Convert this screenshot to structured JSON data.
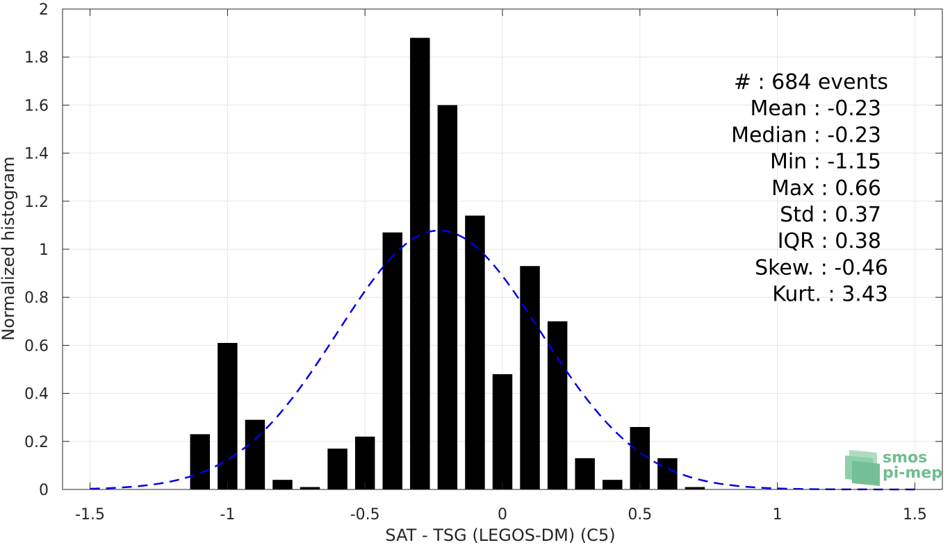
{
  "chart_data": {
    "type": "bar",
    "xlabel": "SAT - TSG (LEGOS-DM) (C5)",
    "ylabel": "Normalized histogram",
    "xlim": [
      -1.6,
      1.6
    ],
    "ylim": [
      0,
      2
    ],
    "xticks": [
      -1.5,
      -1,
      -0.5,
      0,
      0.5,
      1,
      1.5
    ],
    "xtick_labels": [
      "-1.5",
      "-1",
      "-0.5",
      "0",
      "0.5",
      "1",
      "1.5"
    ],
    "yticks": [
      0,
      0.2,
      0.4,
      0.6,
      0.8,
      1,
      1.2,
      1.4,
      1.6,
      1.8,
      2
    ],
    "ytick_labels": [
      "0",
      "0.2",
      "0.4",
      "0.6",
      "0.8",
      "1",
      "1.2",
      "1.4",
      "1.6",
      "1.8",
      "2"
    ],
    "grid": true,
    "bar_color": "#000000",
    "bin_width": 0.1,
    "bins": [
      {
        "x": -1.1,
        "y": 0.23
      },
      {
        "x": -1.0,
        "y": 0.61
      },
      {
        "x": -0.9,
        "y": 0.29
      },
      {
        "x": -0.8,
        "y": 0.04
      },
      {
        "x": -0.7,
        "y": 0.01
      },
      {
        "x": -0.6,
        "y": 0.17
      },
      {
        "x": -0.5,
        "y": 0.22
      },
      {
        "x": -0.4,
        "y": 1.07
      },
      {
        "x": -0.3,
        "y": 1.88
      },
      {
        "x": -0.2,
        "y": 1.6
      },
      {
        "x": -0.1,
        "y": 1.14
      },
      {
        "x": 0.0,
        "y": 0.48
      },
      {
        "x": 0.1,
        "y": 0.93
      },
      {
        "x": 0.2,
        "y": 0.7
      },
      {
        "x": 0.3,
        "y": 0.13
      },
      {
        "x": 0.4,
        "y": 0.04
      },
      {
        "x": 0.5,
        "y": 0.26
      },
      {
        "x": 0.6,
        "y": 0.13
      },
      {
        "x": 0.7,
        "y": 0.01
      }
    ],
    "fit_curve": {
      "style": "dashed",
      "color": "#0000e6",
      "mean": -0.23,
      "std": 0.37,
      "x_range": [
        -1.5,
        1.5
      ]
    },
    "stats_lines": [
      "#  : 684 events",
      "Mean : -0.23",
      "Median : -0.23",
      "Min : -1.15",
      "Max : 0.66",
      "Std : 0.37",
      "IQR : 0.38",
      "Skew. : -0.46",
      "Kurt. : 3.43"
    ],
    "logo": {
      "line1": "smos",
      "line2": "pi-mep",
      "color": "#6fbf8f"
    }
  }
}
